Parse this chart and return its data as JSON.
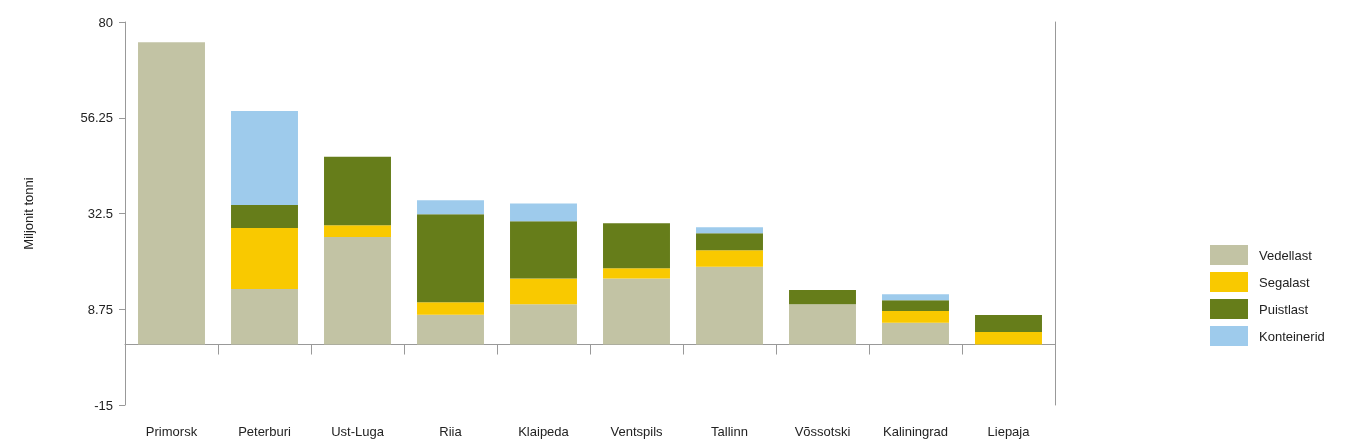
{
  "chart_data": {
    "type": "bar",
    "stacked": true,
    "ylabel": "Miljonit tonni",
    "categories": [
      "Primorsk",
      "Peterburi",
      "Ust-Luga",
      "Riia",
      "Klaipeda",
      "Ventspils",
      "Tallinn",
      "Võssotski",
      "Kaliningrad",
      "Liepaja"
    ],
    "series": [
      {
        "name": "Vedellast",
        "color": "#c2c3a4",
        "values": [
          75,
          13.8,
          26.7,
          7.4,
          10.0,
          16.4,
          19.3,
          10.0,
          5.4,
          null
        ]
      },
      {
        "name": "Segalast",
        "color": "#f9c900",
        "values": [
          null,
          15.1,
          2.9,
          3.1,
          6.4,
          2.5,
          4.1,
          null,
          2.9,
          3.1
        ]
      },
      {
        "name": "Puistlast",
        "color": "#667d1a",
        "values": [
          null,
          5.7,
          17.0,
          21.8,
          14.2,
          11.2,
          4.2,
          3.5,
          2.7,
          4.2
        ]
      },
      {
        "name": "Konteinerid",
        "color": "#9ecbec",
        "values": [
          null,
          23.3,
          null,
          3.5,
          4.4,
          null,
          1.5,
          null,
          1.5,
          null
        ]
      }
    ],
    "ylim": [
      -15,
      80
    ],
    "yticks": [
      -15,
      8.75,
      32.5,
      56.25,
      80
    ],
    "grid": false,
    "legend": "right"
  }
}
